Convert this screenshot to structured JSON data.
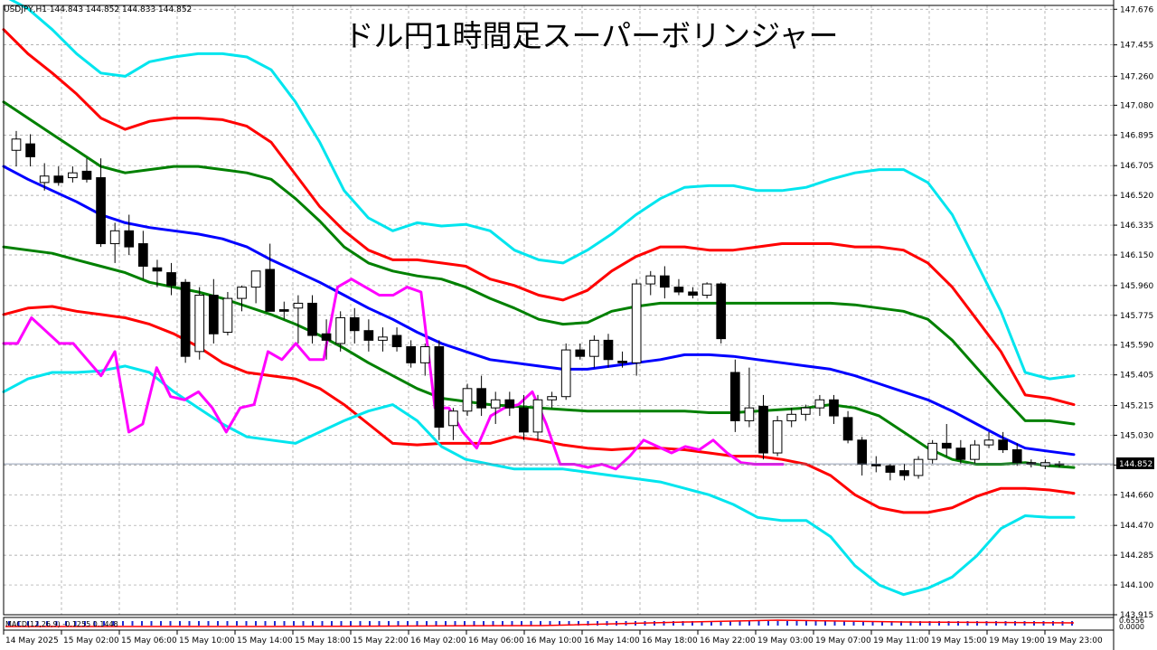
{
  "chart_data": {
    "type": "candlestick",
    "title": "ドル円1時間足スーパーボリンジャー",
    "symbol_info": "USDJPY,H1  144.843 144.852 144.833 144.852",
    "current_price": 144.852,
    "current_price_label": "144.852",
    "y_range": [
      143.915,
      147.7
    ],
    "y_ticks": [
      "147.676",
      "147.455",
      "147.260",
      "147.080",
      "146.895",
      "146.705",
      "146.520",
      "146.335",
      "146.150",
      "145.960",
      "145.775",
      "145.590",
      "145.405",
      "145.215",
      "145.030",
      "144.845",
      "144.660",
      "144.470",
      "144.285",
      "144.100",
      "143.915"
    ],
    "x_ticks": [
      "14 May 2025",
      "15 May 02:00",
      "15 May 06:00",
      "15 May 10:00",
      "15 May 14:00",
      "15 May 18:00",
      "15 May 22:00",
      "16 May 02:00",
      "16 May 06:00",
      "16 May 10:00",
      "16 May 14:00",
      "16 May 18:00",
      "16 May 22:00",
      "19 May 03:00",
      "19 May 07:00",
      "19 May 11:00",
      "19 May 15:00",
      "19 May 19:00",
      "19 May 23:00"
    ],
    "grid": true,
    "candles": [
      {
        "o": 146.8,
        "h": 146.92,
        "l": 146.7,
        "c": 146.87
      },
      {
        "o": 146.84,
        "h": 146.9,
        "l": 146.7,
        "c": 146.76
      },
      {
        "o": 146.6,
        "h": 146.72,
        "l": 146.55,
        "c": 146.64
      },
      {
        "o": 146.64,
        "h": 146.7,
        "l": 146.58,
        "c": 146.6
      },
      {
        "o": 146.63,
        "h": 146.7,
        "l": 146.6,
        "c": 146.66
      },
      {
        "o": 146.67,
        "h": 146.75,
        "l": 146.6,
        "c": 146.62
      },
      {
        "o": 146.63,
        "h": 146.75,
        "l": 146.2,
        "c": 146.22
      },
      {
        "o": 146.22,
        "h": 146.35,
        "l": 146.1,
        "c": 146.3
      },
      {
        "o": 146.3,
        "h": 146.4,
        "l": 146.15,
        "c": 146.2
      },
      {
        "o": 146.22,
        "h": 146.3,
        "l": 146.0,
        "c": 146.08
      },
      {
        "o": 146.07,
        "h": 146.12,
        "l": 145.95,
        "c": 146.05
      },
      {
        "o": 146.04,
        "h": 146.1,
        "l": 145.9,
        "c": 145.96
      },
      {
        "o": 145.98,
        "h": 146.0,
        "l": 145.48,
        "c": 145.52
      },
      {
        "o": 145.55,
        "h": 145.95,
        "l": 145.5,
        "c": 145.9
      },
      {
        "o": 145.9,
        "h": 146.0,
        "l": 145.6,
        "c": 145.66
      },
      {
        "o": 145.67,
        "h": 145.92,
        "l": 145.65,
        "c": 145.88
      },
      {
        "o": 145.88,
        "h": 145.96,
        "l": 145.8,
        "c": 145.95
      },
      {
        "o": 145.95,
        "h": 146.05,
        "l": 145.85,
        "c": 146.05
      },
      {
        "o": 146.06,
        "h": 146.22,
        "l": 145.8,
        "c": 145.8
      },
      {
        "o": 145.81,
        "h": 145.86,
        "l": 145.75,
        "c": 145.8
      },
      {
        "o": 145.82,
        "h": 145.9,
        "l": 145.6,
        "c": 145.85
      },
      {
        "o": 145.85,
        "h": 145.9,
        "l": 145.6,
        "c": 145.65
      },
      {
        "o": 145.66,
        "h": 145.75,
        "l": 145.5,
        "c": 145.62
      },
      {
        "o": 145.6,
        "h": 145.8,
        "l": 145.55,
        "c": 145.76
      },
      {
        "o": 145.76,
        "h": 145.82,
        "l": 145.6,
        "c": 145.68
      },
      {
        "o": 145.68,
        "h": 145.75,
        "l": 145.55,
        "c": 145.62
      },
      {
        "o": 145.62,
        "h": 145.7,
        "l": 145.55,
        "c": 145.64
      },
      {
        "o": 145.65,
        "h": 145.7,
        "l": 145.55,
        "c": 145.58
      },
      {
        "o": 145.58,
        "h": 145.62,
        "l": 145.45,
        "c": 145.48
      },
      {
        "o": 145.48,
        "h": 145.6,
        "l": 145.4,
        "c": 145.58
      },
      {
        "o": 145.58,
        "h": 145.62,
        "l": 145.0,
        "c": 145.08
      },
      {
        "o": 145.09,
        "h": 145.2,
        "l": 145.0,
        "c": 145.18
      },
      {
        "o": 145.18,
        "h": 145.35,
        "l": 145.15,
        "c": 145.32
      },
      {
        "o": 145.32,
        "h": 145.4,
        "l": 145.15,
        "c": 145.2
      },
      {
        "o": 145.2,
        "h": 145.3,
        "l": 145.1,
        "c": 145.25
      },
      {
        "o": 145.25,
        "h": 145.3,
        "l": 145.15,
        "c": 145.2
      },
      {
        "o": 145.2,
        "h": 145.28,
        "l": 145.0,
        "c": 145.05
      },
      {
        "o": 145.05,
        "h": 145.28,
        "l": 145.0,
        "c": 145.25
      },
      {
        "o": 145.25,
        "h": 145.3,
        "l": 145.2,
        "c": 145.27
      },
      {
        "o": 145.27,
        "h": 145.6,
        "l": 145.25,
        "c": 145.56
      },
      {
        "o": 145.56,
        "h": 145.6,
        "l": 145.5,
        "c": 145.52
      },
      {
        "o": 145.52,
        "h": 145.65,
        "l": 145.45,
        "c": 145.62
      },
      {
        "o": 145.62,
        "h": 145.66,
        "l": 145.45,
        "c": 145.5
      },
      {
        "o": 145.49,
        "h": 145.55,
        "l": 145.45,
        "c": 145.48
      },
      {
        "o": 145.48,
        "h": 146.0,
        "l": 145.4,
        "c": 145.97
      },
      {
        "o": 145.97,
        "h": 146.05,
        "l": 145.9,
        "c": 146.02
      },
      {
        "o": 146.02,
        "h": 146.08,
        "l": 145.88,
        "c": 145.95
      },
      {
        "o": 145.95,
        "h": 146.0,
        "l": 145.9,
        "c": 145.92
      },
      {
        "o": 145.92,
        "h": 145.95,
        "l": 145.88,
        "c": 145.9
      },
      {
        "o": 145.9,
        "h": 145.98,
        "l": 145.88,
        "c": 145.97
      },
      {
        "o": 145.97,
        "h": 145.98,
        "l": 145.6,
        "c": 145.63
      },
      {
        "o": 145.42,
        "h": 145.5,
        "l": 145.05,
        "c": 145.12
      },
      {
        "o": 145.12,
        "h": 145.45,
        "l": 145.08,
        "c": 145.2
      },
      {
        "o": 145.21,
        "h": 145.28,
        "l": 144.88,
        "c": 144.92
      },
      {
        "o": 144.92,
        "h": 145.15,
        "l": 144.9,
        "c": 145.12
      },
      {
        "o": 145.12,
        "h": 145.2,
        "l": 145.08,
        "c": 145.16
      },
      {
        "o": 145.16,
        "h": 145.22,
        "l": 145.12,
        "c": 145.2
      },
      {
        "o": 145.2,
        "h": 145.28,
        "l": 145.15,
        "c": 145.25
      },
      {
        "o": 145.25,
        "h": 145.28,
        "l": 145.1,
        "c": 145.15
      },
      {
        "o": 145.14,
        "h": 145.18,
        "l": 144.98,
        "c": 145.0
      },
      {
        "o": 145.0,
        "h": 145.02,
        "l": 144.78,
        "c": 144.85
      },
      {
        "o": 144.85,
        "h": 144.9,
        "l": 144.8,
        "c": 144.84
      },
      {
        "o": 144.84,
        "h": 144.85,
        "l": 144.75,
        "c": 144.8
      },
      {
        "o": 144.81,
        "h": 144.85,
        "l": 144.75,
        "c": 144.78
      },
      {
        "o": 144.78,
        "h": 144.9,
        "l": 144.76,
        "c": 144.88
      },
      {
        "o": 144.88,
        "h": 145.0,
        "l": 144.85,
        "c": 144.98
      },
      {
        "o": 144.98,
        "h": 145.1,
        "l": 144.9,
        "c": 144.95
      },
      {
        "o": 144.95,
        "h": 145.0,
        "l": 144.85,
        "c": 144.88
      },
      {
        "o": 144.88,
        "h": 145.0,
        "l": 144.85,
        "c": 144.97
      },
      {
        "o": 144.97,
        "h": 145.05,
        "l": 144.95,
        "c": 145.0
      },
      {
        "o": 145.0,
        "h": 145.05,
        "l": 144.92,
        "c": 144.94
      },
      {
        "o": 144.94,
        "h": 144.98,
        "l": 144.84,
        "c": 144.86
      },
      {
        "o": 144.86,
        "h": 144.88,
        "l": 144.83,
        "c": 144.85
      },
      {
        "o": 144.84,
        "h": 144.88,
        "l": 144.82,
        "c": 144.86
      },
      {
        "o": 144.85,
        "h": 144.87,
        "l": 144.83,
        "c": 144.852
      }
    ],
    "series": [
      {
        "color": "#00e5ee",
        "values": [
          147.76,
          147.68,
          147.55,
          147.4,
          147.28,
          147.26,
          147.35,
          147.38,
          147.4,
          147.4,
          147.38,
          147.3,
          147.1,
          146.85,
          146.55,
          146.38,
          146.3,
          146.35,
          146.33,
          146.34,
          146.3,
          146.18,
          146.12,
          146.1,
          146.18,
          146.28,
          146.4,
          146.5,
          146.57,
          146.58,
          146.58,
          146.55,
          146.55,
          146.57,
          146.62,
          146.66,
          146.68,
          146.68,
          146.6,
          146.4,
          146.1,
          145.8,
          145.42,
          145.38,
          145.4
        ]
      },
      {
        "color": "#ff0000",
        "values": [
          147.55,
          147.4,
          147.28,
          147.15,
          147.0,
          146.93,
          146.98,
          147.0,
          147.0,
          146.99,
          146.95,
          146.85,
          146.65,
          146.45,
          146.3,
          146.18,
          146.12,
          146.12,
          146.1,
          146.08,
          146.0,
          145.96,
          145.9,
          145.87,
          145.93,
          146.05,
          146.14,
          146.2,
          146.2,
          146.18,
          146.18,
          146.2,
          146.22,
          146.22,
          146.22,
          146.2,
          146.2,
          146.18,
          146.1,
          145.95,
          145.75,
          145.55,
          145.28,
          145.26,
          145.22
        ]
      },
      {
        "color": "#008000",
        "values": [
          147.1,
          147.0,
          146.9,
          146.8,
          146.7,
          146.66,
          146.68,
          146.7,
          146.7,
          146.68,
          146.66,
          146.62,
          146.5,
          146.36,
          146.2,
          146.1,
          146.05,
          146.02,
          146.0,
          145.95,
          145.88,
          145.82,
          145.75,
          145.72,
          145.73,
          145.8,
          145.83,
          145.85,
          145.85,
          145.85,
          145.85,
          145.85,
          145.85,
          145.85,
          145.85,
          145.84,
          145.82,
          145.8,
          145.75,
          145.62,
          145.45,
          145.28,
          145.12,
          145.12,
          145.1
        ]
      },
      {
        "color": "#0000ff",
        "values": [
          146.7,
          146.62,
          146.55,
          146.48,
          146.4,
          146.35,
          146.32,
          146.3,
          146.28,
          146.25,
          146.2,
          146.12,
          146.05,
          145.98,
          145.9,
          145.82,
          145.75,
          145.67,
          145.6,
          145.55,
          145.5,
          145.48,
          145.46,
          145.44,
          145.44,
          145.46,
          145.48,
          145.5,
          145.53,
          145.53,
          145.52,
          145.5,
          145.48,
          145.46,
          145.44,
          145.4,
          145.35,
          145.3,
          145.25,
          145.18,
          145.1,
          145.02,
          144.95,
          144.93,
          144.91
        ]
      },
      {
        "color": "#008000",
        "values": [
          146.2,
          146.18,
          146.16,
          146.12,
          146.08,
          146.04,
          145.98,
          145.95,
          145.92,
          145.88,
          145.83,
          145.78,
          145.72,
          145.65,
          145.57,
          145.48,
          145.4,
          145.32,
          145.26,
          145.24,
          145.22,
          145.21,
          145.2,
          145.19,
          145.18,
          145.18,
          145.18,
          145.18,
          145.18,
          145.17,
          145.17,
          145.18,
          145.19,
          145.2,
          145.22,
          145.2,
          145.15,
          145.05,
          144.95,
          144.88,
          144.85,
          144.85,
          144.86,
          144.84,
          144.83
        ]
      },
      {
        "color": "#ff0000",
        "values": [
          145.78,
          145.82,
          145.83,
          145.8,
          145.78,
          145.76,
          145.72,
          145.66,
          145.58,
          145.48,
          145.42,
          145.4,
          145.38,
          145.32,
          145.22,
          145.1,
          144.98,
          144.97,
          144.98,
          144.98,
          144.98,
          145.02,
          145.0,
          144.97,
          144.95,
          144.94,
          144.95,
          144.95,
          144.94,
          144.92,
          144.9,
          144.9,
          144.88,
          144.85,
          144.78,
          144.66,
          144.58,
          144.55,
          144.55,
          144.58,
          144.65,
          144.7,
          144.7,
          144.69,
          144.67
        ]
      },
      {
        "color": "#00e5ee",
        "values": [
          145.3,
          145.38,
          145.42,
          145.42,
          145.43,
          145.46,
          145.42,
          145.3,
          145.2,
          145.1,
          145.02,
          145.0,
          144.98,
          145.05,
          145.12,
          145.18,
          145.22,
          145.12,
          144.96,
          144.88,
          144.85,
          144.82,
          144.82,
          144.82,
          144.8,
          144.78,
          144.76,
          144.74,
          144.7,
          144.66,
          144.6,
          144.52,
          144.5,
          144.5,
          144.4,
          144.22,
          144.1,
          144.04,
          144.08,
          144.15,
          144.28,
          144.45,
          144.53,
          144.52,
          144.52
        ]
      },
      {
        "color": "#ff00ff",
        "values": [
          145.6,
          145.6,
          145.76,
          145.68,
          145.6,
          145.6,
          145.5,
          145.4,
          145.55,
          145.05,
          145.1,
          145.45,
          145.27,
          145.25,
          145.3,
          145.2,
          145.05,
          145.2,
          145.22,
          145.55,
          145.5,
          145.6,
          145.5,
          145.5,
          145.95,
          146.0,
          145.95,
          145.9,
          145.9,
          145.95,
          145.92,
          145.2,
          145.2,
          145.05,
          144.95,
          145.15,
          145.2,
          145.22,
          145.3,
          145.1,
          144.85,
          144.85,
          144.83,
          144.85,
          144.82,
          144.9,
          145.0,
          144.96,
          144.92,
          144.96,
          144.94,
          145.0,
          144.92,
          144.86,
          144.85,
          144.85,
          144.85
        ]
      }
    ],
    "macd_label": "MACD(12,26,9) -0.1255 0.1448",
    "macd_scale_labels": [
      "0.6556",
      "0.0000"
    ]
  }
}
